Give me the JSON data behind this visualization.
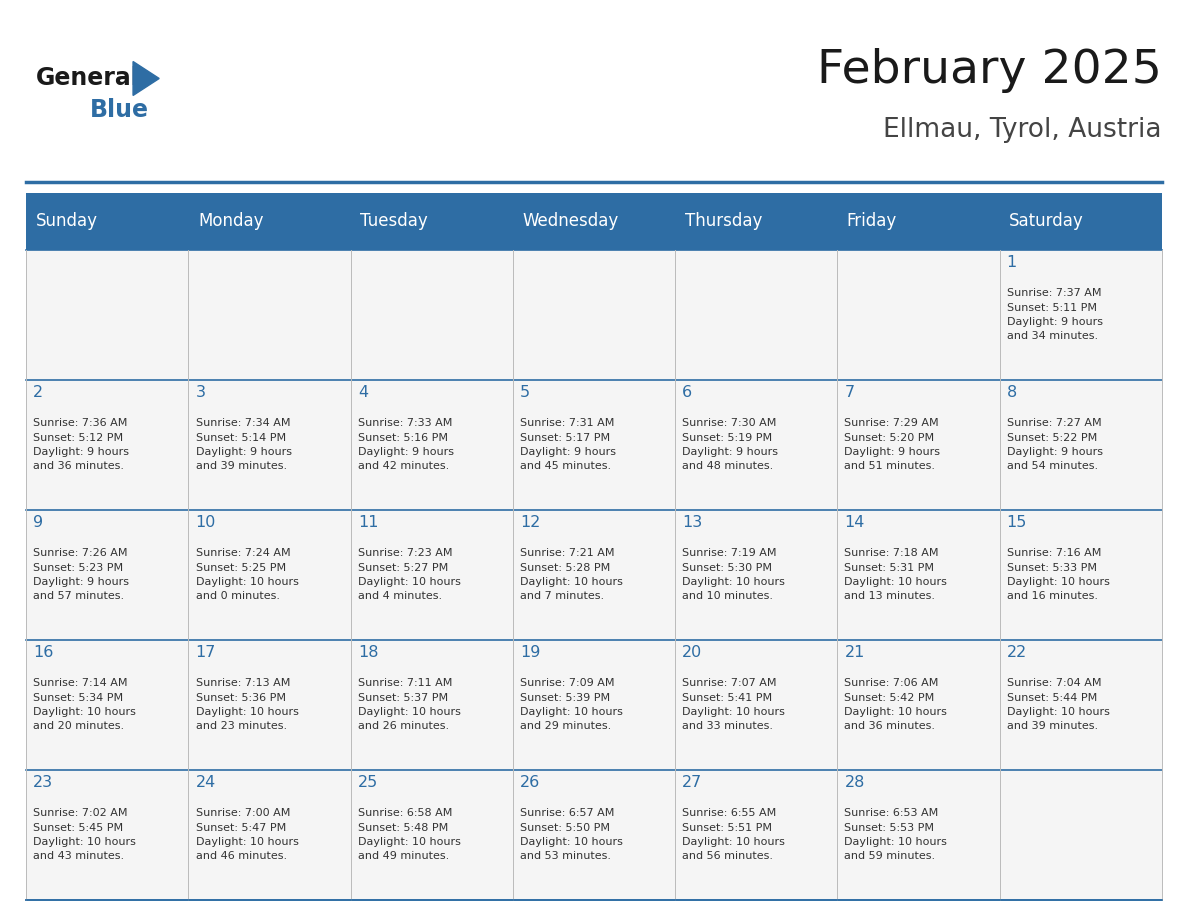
{
  "title": "February 2025",
  "subtitle": "Ellmau, Tyrol, Austria",
  "days_of_week": [
    "Sunday",
    "Monday",
    "Tuesday",
    "Wednesday",
    "Thursday",
    "Friday",
    "Saturday"
  ],
  "header_bg": "#2E6DA4",
  "header_text": "#FFFFFF",
  "grid_line_color": "#2E6DA4",
  "title_color": "#1a1a1a",
  "subtitle_color": "#444444",
  "day_number_color": "#2E6DA4",
  "cell_text_color": "#333333",
  "cell_bg": "#F5F5F5",
  "logo_triangle_color": "#2E6DA4",
  "weeks": [
    [
      {
        "day": null,
        "info": ""
      },
      {
        "day": null,
        "info": ""
      },
      {
        "day": null,
        "info": ""
      },
      {
        "day": null,
        "info": ""
      },
      {
        "day": null,
        "info": ""
      },
      {
        "day": null,
        "info": ""
      },
      {
        "day": 1,
        "info": "Sunrise: 7:37 AM\nSunset: 5:11 PM\nDaylight: 9 hours\nand 34 minutes."
      }
    ],
    [
      {
        "day": 2,
        "info": "Sunrise: 7:36 AM\nSunset: 5:12 PM\nDaylight: 9 hours\nand 36 minutes."
      },
      {
        "day": 3,
        "info": "Sunrise: 7:34 AM\nSunset: 5:14 PM\nDaylight: 9 hours\nand 39 minutes."
      },
      {
        "day": 4,
        "info": "Sunrise: 7:33 AM\nSunset: 5:16 PM\nDaylight: 9 hours\nand 42 minutes."
      },
      {
        "day": 5,
        "info": "Sunrise: 7:31 AM\nSunset: 5:17 PM\nDaylight: 9 hours\nand 45 minutes."
      },
      {
        "day": 6,
        "info": "Sunrise: 7:30 AM\nSunset: 5:19 PM\nDaylight: 9 hours\nand 48 minutes."
      },
      {
        "day": 7,
        "info": "Sunrise: 7:29 AM\nSunset: 5:20 PM\nDaylight: 9 hours\nand 51 minutes."
      },
      {
        "day": 8,
        "info": "Sunrise: 7:27 AM\nSunset: 5:22 PM\nDaylight: 9 hours\nand 54 minutes."
      }
    ],
    [
      {
        "day": 9,
        "info": "Sunrise: 7:26 AM\nSunset: 5:23 PM\nDaylight: 9 hours\nand 57 minutes."
      },
      {
        "day": 10,
        "info": "Sunrise: 7:24 AM\nSunset: 5:25 PM\nDaylight: 10 hours\nand 0 minutes."
      },
      {
        "day": 11,
        "info": "Sunrise: 7:23 AM\nSunset: 5:27 PM\nDaylight: 10 hours\nand 4 minutes."
      },
      {
        "day": 12,
        "info": "Sunrise: 7:21 AM\nSunset: 5:28 PM\nDaylight: 10 hours\nand 7 minutes."
      },
      {
        "day": 13,
        "info": "Sunrise: 7:19 AM\nSunset: 5:30 PM\nDaylight: 10 hours\nand 10 minutes."
      },
      {
        "day": 14,
        "info": "Sunrise: 7:18 AM\nSunset: 5:31 PM\nDaylight: 10 hours\nand 13 minutes."
      },
      {
        "day": 15,
        "info": "Sunrise: 7:16 AM\nSunset: 5:33 PM\nDaylight: 10 hours\nand 16 minutes."
      }
    ],
    [
      {
        "day": 16,
        "info": "Sunrise: 7:14 AM\nSunset: 5:34 PM\nDaylight: 10 hours\nand 20 minutes."
      },
      {
        "day": 17,
        "info": "Sunrise: 7:13 AM\nSunset: 5:36 PM\nDaylight: 10 hours\nand 23 minutes."
      },
      {
        "day": 18,
        "info": "Sunrise: 7:11 AM\nSunset: 5:37 PM\nDaylight: 10 hours\nand 26 minutes."
      },
      {
        "day": 19,
        "info": "Sunrise: 7:09 AM\nSunset: 5:39 PM\nDaylight: 10 hours\nand 29 minutes."
      },
      {
        "day": 20,
        "info": "Sunrise: 7:07 AM\nSunset: 5:41 PM\nDaylight: 10 hours\nand 33 minutes."
      },
      {
        "day": 21,
        "info": "Sunrise: 7:06 AM\nSunset: 5:42 PM\nDaylight: 10 hours\nand 36 minutes."
      },
      {
        "day": 22,
        "info": "Sunrise: 7:04 AM\nSunset: 5:44 PM\nDaylight: 10 hours\nand 39 minutes."
      }
    ],
    [
      {
        "day": 23,
        "info": "Sunrise: 7:02 AM\nSunset: 5:45 PM\nDaylight: 10 hours\nand 43 minutes."
      },
      {
        "day": 24,
        "info": "Sunrise: 7:00 AM\nSunset: 5:47 PM\nDaylight: 10 hours\nand 46 minutes."
      },
      {
        "day": 25,
        "info": "Sunrise: 6:58 AM\nSunset: 5:48 PM\nDaylight: 10 hours\nand 49 minutes."
      },
      {
        "day": 26,
        "info": "Sunrise: 6:57 AM\nSunset: 5:50 PM\nDaylight: 10 hours\nand 53 minutes."
      },
      {
        "day": 27,
        "info": "Sunrise: 6:55 AM\nSunset: 5:51 PM\nDaylight: 10 hours\nand 56 minutes."
      },
      {
        "day": 28,
        "info": "Sunrise: 6:53 AM\nSunset: 5:53 PM\nDaylight: 10 hours\nand 59 minutes."
      },
      {
        "day": null,
        "info": ""
      }
    ]
  ]
}
